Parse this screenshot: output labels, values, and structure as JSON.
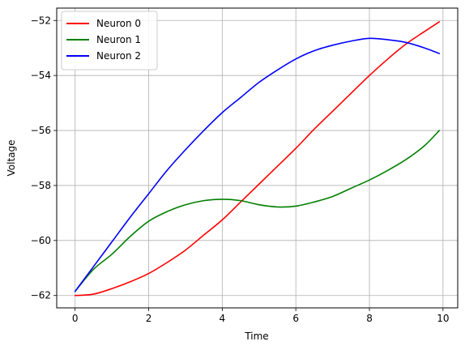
{
  "chart_data": {
    "type": "line",
    "xlabel": "Time",
    "ylabel": "Voltage",
    "xlim": [
      -0.5,
      10.4
    ],
    "ylim": [
      -62.45,
      -51.55
    ],
    "xticks": [
      0,
      2,
      4,
      6,
      8,
      10
    ],
    "yticks": [
      -62,
      -60,
      -58,
      -56,
      -54,
      -52
    ],
    "xtick_labels": [
      "0",
      "2",
      "4",
      "6",
      "8",
      "10"
    ],
    "ytick_labels": [
      "−62",
      "−60",
      "−58",
      "−56",
      "−54",
      "−52"
    ],
    "grid": true,
    "legend_position": "top-left",
    "x": [
      0,
      0.5,
      1,
      1.5,
      2,
      2.5,
      3,
      3.5,
      4,
      4.5,
      5,
      5.5,
      6,
      6.5,
      7,
      7.5,
      8,
      8.5,
      9,
      9.5,
      9.9
    ],
    "series": [
      {
        "name": "Neuron 0",
        "color": "#ff0000",
        "values": [
          -62.0,
          -61.95,
          -61.75,
          -61.5,
          -61.2,
          -60.8,
          -60.35,
          -59.8,
          -59.25,
          -58.6,
          -57.95,
          -57.3,
          -56.65,
          -55.95,
          -55.3,
          -54.65,
          -54.0,
          -53.4,
          -52.85,
          -52.4,
          -52.05
        ]
      },
      {
        "name": "Neuron 1",
        "color": "#008000",
        "values": [
          -61.85,
          -61.05,
          -60.5,
          -59.85,
          -59.3,
          -58.95,
          -58.7,
          -58.55,
          -58.5,
          -58.55,
          -58.7,
          -58.78,
          -58.75,
          -58.6,
          -58.4,
          -58.1,
          -57.8,
          -57.45,
          -57.05,
          -56.55,
          -56.0
        ]
      },
      {
        "name": "Neuron 2",
        "color": "#0000ff",
        "values": [
          -61.85,
          -60.95,
          -60.05,
          -59.15,
          -58.3,
          -57.45,
          -56.7,
          -56.0,
          -55.35,
          -54.8,
          -54.25,
          -53.8,
          -53.4,
          -53.1,
          -52.9,
          -52.75,
          -52.65,
          -52.7,
          -52.8,
          -53.0,
          -53.2
        ]
      }
    ]
  }
}
